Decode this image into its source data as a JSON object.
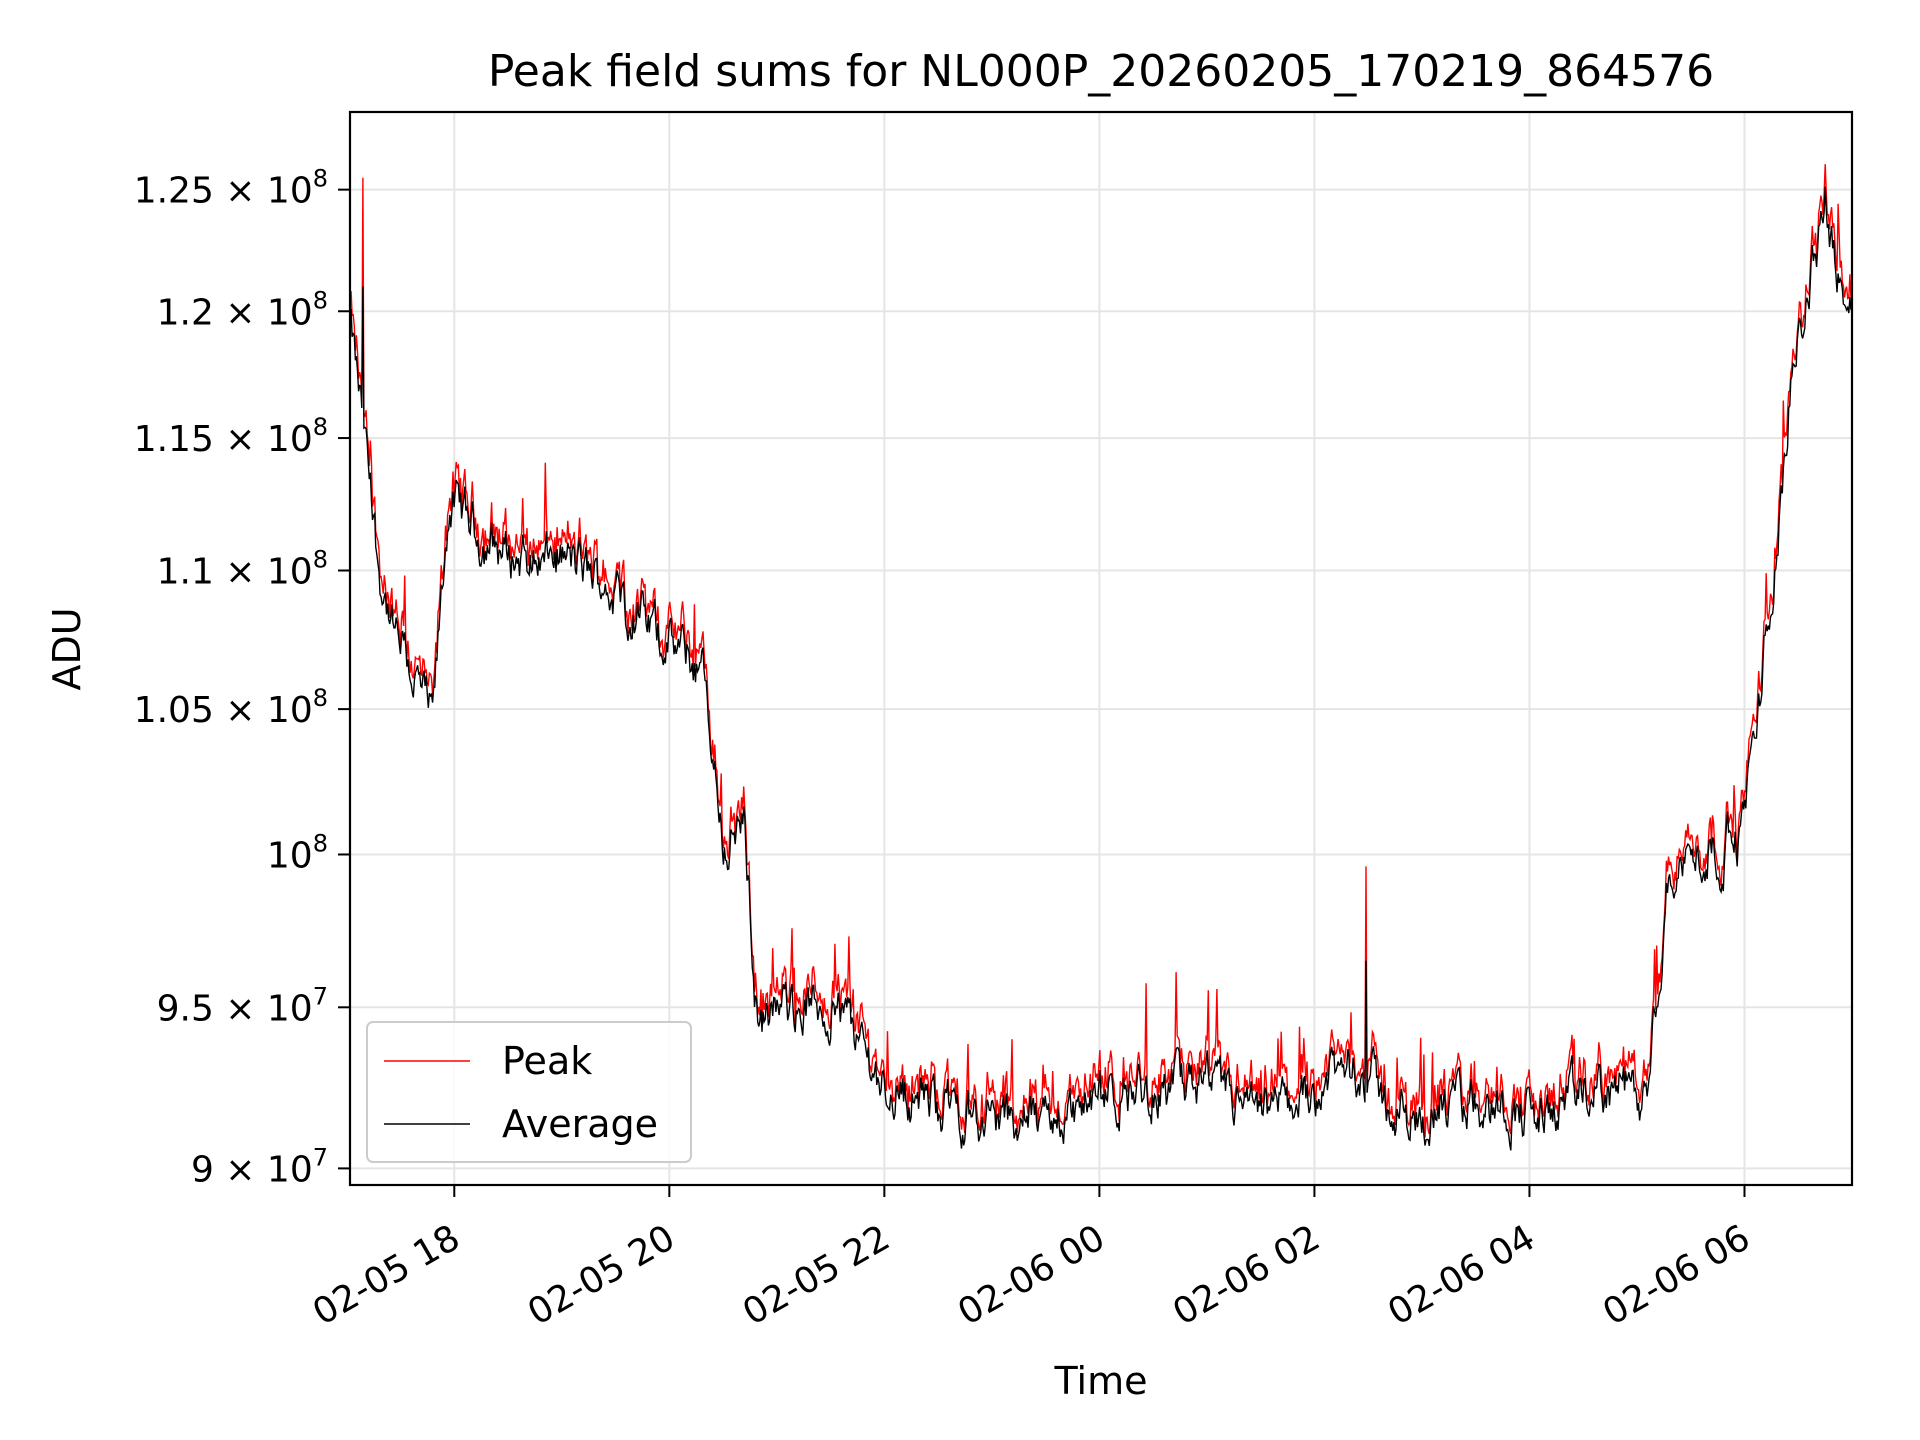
{
  "chart_data": {
    "type": "line",
    "title": "Peak field sums for NL000P_20260205_170219_864576",
    "xlabel": "Time",
    "ylabel": "ADU",
    "yscale": "log",
    "ylim": [
      89500000,
      128300000
    ],
    "xlim_hours": [
      -0.97,
      13.0
    ],
    "x_ticks": [
      {
        "label": "02-05 18",
        "hour": 0
      },
      {
        "label": "02-05 20",
        "hour": 2
      },
      {
        "label": "02-05 22",
        "hour": 4
      },
      {
        "label": "02-06 00",
        "hour": 6
      },
      {
        "label": "02-06 02",
        "hour": 8
      },
      {
        "label": "02-06 04",
        "hour": 10
      },
      {
        "label": "02-06 06",
        "hour": 12
      }
    ],
    "y_ticks": [
      {
        "mantissa": "1.25",
        "exp": "8",
        "value": 125000000
      },
      {
        "mantissa": "1.2",
        "exp": "8",
        "value": 120000000
      },
      {
        "mantissa": "1.15",
        "exp": "8",
        "value": 115000000
      },
      {
        "mantissa": "1.1",
        "exp": "8",
        "value": 110000000
      },
      {
        "mantissa": "1.05",
        "exp": "8",
        "value": 105000000
      },
      {
        "mantissa": "",
        "exp": "8",
        "value": 100000000
      },
      {
        "mantissa": "9.5",
        "exp": "7",
        "value": 95000000
      },
      {
        "mantissa": "9",
        "exp": "7",
        "value": 90000000
      }
    ],
    "grid": true,
    "legend_location": "lower-left",
    "series": [
      {
        "name": "Peak",
        "color": "#ff0000"
      },
      {
        "name": "Average",
        "color": "#000000"
      }
    ],
    "average_trend": {
      "hour": [
        -0.97,
        -0.85,
        -0.7,
        -0.55,
        -0.35,
        -0.2,
        -0.05,
        0.1,
        0.3,
        0.6,
        1.0,
        1.4,
        1.8,
        2.1,
        2.3,
        2.45,
        2.5,
        2.7,
        2.8,
        2.85,
        3.1,
        3.6,
        4.0,
        4.5,
        5.0,
        5.5,
        6.0,
        6.5,
        7.0,
        7.5,
        8.0,
        8.4,
        8.8,
        9.2,
        9.7,
        10.1,
        10.5,
        10.9,
        11.1,
        11.3,
        11.6,
        11.95,
        12.1,
        12.3,
        12.45,
        12.6,
        12.75,
        12.9,
        13.0
      ],
      "value": [
        119500000,
        115500000,
        110000000,
        107500000,
        106000000,
        104500000,
        112500000,
        112000000,
        111000000,
        110500000,
        110500000,
        109500000,
        108000000,
        107000000,
        106500000,
        102000000,
        100500000,
        101000000,
        95500000,
        94500000,
        95000000,
        95000000,
        92500000,
        92000000,
        91500000,
        91500000,
        92000000,
        92500000,
        92500000,
        91500000,
        92500000,
        93200000,
        91500000,
        91800000,
        92000000,
        91500000,
        92300000,
        92500000,
        91800000,
        99500000,
        100000000,
        100500000,
        104000000,
        111000000,
        118000000,
        121000000,
        124500000,
        121000000,
        120000000
      ]
    },
    "spikes": [
      {
        "hour": 8.48,
        "peak": 99600000,
        "average": 96500000
      },
      {
        "hour": -0.85,
        "peak": 125500000,
        "average": 121000000
      }
    ]
  }
}
